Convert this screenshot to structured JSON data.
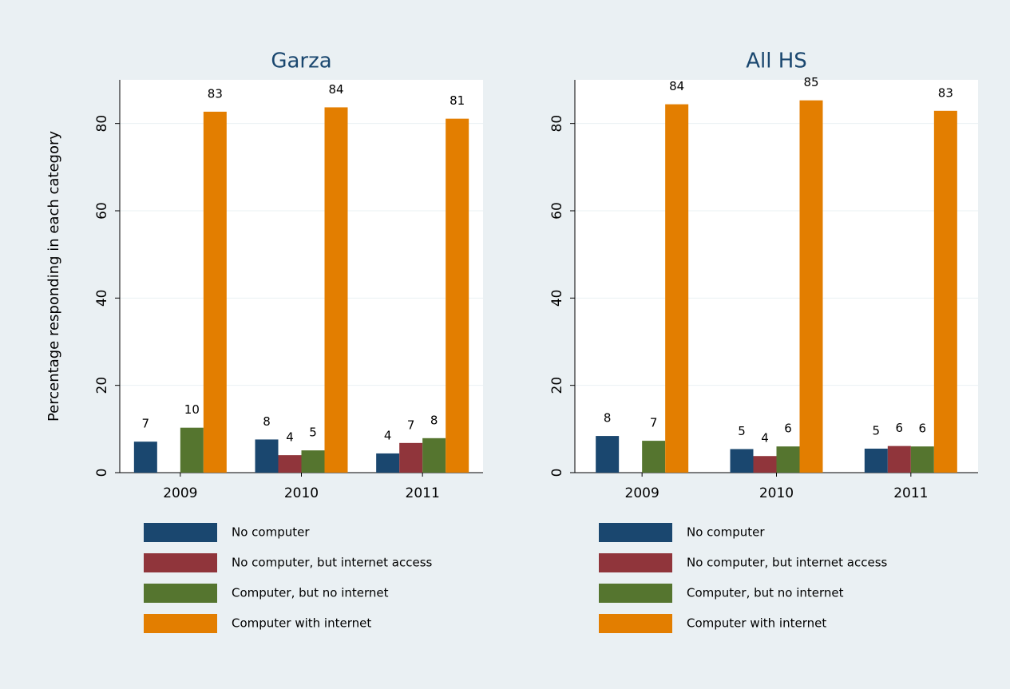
{
  "chart_data": [
    {
      "type": "bar",
      "title": "Garza",
      "y_label": "Percentage responding in each category",
      "categories": [
        "2009",
        "2010",
        "2011"
      ],
      "series": [
        {
          "name": "No computer",
          "color": "#1a476f",
          "values": [
            7.1,
            7.6,
            4.4
          ],
          "value_labels": [
            "7",
            "8",
            "4"
          ]
        },
        {
          "name": "No computer, but internet access",
          "color": "#90353b",
          "values": [
            null,
            4.0,
            6.8
          ],
          "value_labels": [
            null,
            "4",
            "7"
          ]
        },
        {
          "name": "Computer, but no internet",
          "color": "#55752f",
          "values": [
            10.3,
            5.1,
            7.9
          ],
          "value_labels": [
            "10",
            "5",
            "8"
          ]
        },
        {
          "name": "Computer with internet",
          "color": "#e37e00",
          "values": [
            82.7,
            83.7,
            81.1
          ],
          "value_labels": [
            "83",
            "84",
            "81"
          ]
        }
      ],
      "ylim": [
        0,
        90
      ],
      "yticks": [
        0,
        20,
        40,
        60,
        80
      ],
      "grid": true
    },
    {
      "type": "bar",
      "title": "All HS",
      "categories": [
        "2009",
        "2010",
        "2011"
      ],
      "series": [
        {
          "name": "No computer",
          "color": "#1a476f",
          "values": [
            8.4,
            5.4,
            5.5
          ],
          "value_labels": [
            "8",
            "5",
            "5"
          ]
        },
        {
          "name": "No computer, but internet access",
          "color": "#90353b",
          "values": [
            null,
            3.8,
            6.1
          ],
          "value_labels": [
            null,
            "4",
            "6"
          ]
        },
        {
          "name": "Computer, but no internet",
          "color": "#55752f",
          "values": [
            7.3,
            6.0,
            6.0
          ],
          "value_labels": [
            "7",
            "6",
            "6"
          ]
        },
        {
          "name": "Computer with internet",
          "color": "#e37e00",
          "values": [
            84.4,
            85.3,
            82.9
          ],
          "value_labels": [
            "84",
            "85",
            "83"
          ]
        }
      ],
      "ylim": [
        0,
        90
      ],
      "yticks": [
        0,
        20,
        40,
        60,
        80
      ],
      "grid": true
    }
  ]
}
